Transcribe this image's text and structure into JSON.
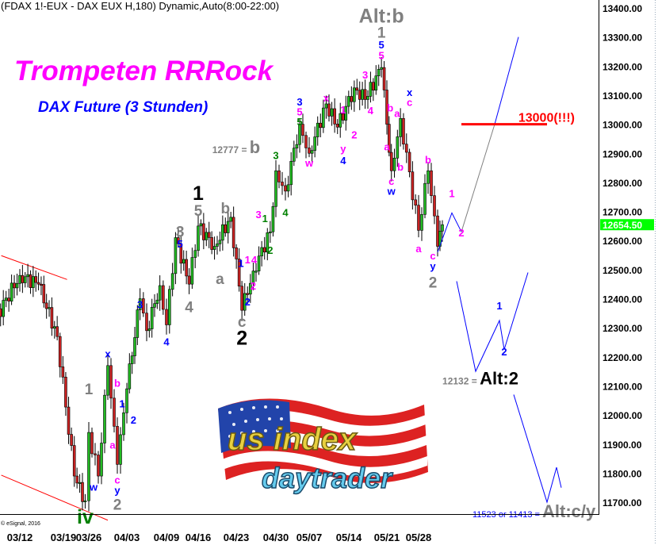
{
  "header": "(FDAX 1!-EUX - DAX EUX H,180) Dynamic,Auto(8:00-22:00)",
  "title": "Trompeten RRRock",
  "subtitle": "DAX Future (3 Stunden)",
  "copyright": "© eSignal, 2016",
  "logo": {
    "line1": "us index",
    "line2": "daytrader"
  },
  "colors": {
    "up": "#22bb22",
    "down": "#cc2222",
    "magenta": "#ff00ff",
    "blue": "#0000ff",
    "gray": "#808080",
    "green": "#008000",
    "black": "#000000",
    "red": "#ff0000",
    "price_box": "#00ff00"
  },
  "chart_data": {
    "type": "candlestick",
    "ylim": [
      11657,
      13427
    ],
    "y_ticks": [
      "13400.00",
      "13300.00",
      "13200.00",
      "13100.00",
      "13000.00",
      "12900.00",
      "12800.00",
      "12700.00",
      "12600.00",
      "12500.00",
      "12400.00",
      "12300.00",
      "12200.00",
      "12100.00",
      "12000.00",
      "11900.00",
      "11800.00",
      "11700.00"
    ],
    "x_ticks": [
      "03/12",
      "03/19",
      "03/26",
      "04/03",
      "04/09",
      "04/16",
      "04/23",
      "04/30",
      "05/07",
      "05/14",
      "05/21",
      "05/28"
    ],
    "last_price": "12654.50",
    "price_path": [
      [
        "03/08",
        12330
      ],
      [
        "03/12",
        12480
      ],
      [
        "03/15",
        12450
      ],
      [
        "03/18",
        12270
      ],
      [
        "03/22",
        11790
      ],
      [
        "03/25",
        11705
      ],
      [
        "03/26",
        11940
      ],
      [
        "03/28",
        11790
      ],
      [
        "03/30",
        12170
      ],
      [
        "04/01",
        11830
      ],
      [
        "04/03",
        12090
      ],
      [
        "04/05",
        12400
      ],
      [
        "04/06",
        12290
      ],
      [
        "04/08",
        12445
      ],
      [
        "04/09",
        12310
      ],
      [
        "04/11",
        12610
      ],
      [
        "04/14",
        12450
      ],
      [
        "04/16",
        12650
      ],
      [
        "04/19",
        12580
      ],
      [
        "04/22",
        12680
      ],
      [
        "04/24",
        12360
      ],
      [
        "04/26",
        12495
      ],
      [
        "04/29",
        12630
      ],
      [
        "04/30",
        12840
      ],
      [
        "05/02",
        12770
      ],
      [
        "05/05",
        13000
      ],
      [
        "05/07",
        12900
      ],
      [
        "05/10",
        13070
      ],
      [
        "05/12",
        12990
      ],
      [
        "05/15",
        13125
      ],
      [
        "05/17",
        13085
      ],
      [
        "05/20",
        13195
      ],
      [
        "05/21",
        13000
      ],
      [
        "05/22",
        12840
      ],
      [
        "05/24",
        13020
      ],
      [
        "05/28",
        12635
      ],
      [
        "05/30",
        12840
      ],
      [
        "06/01",
        12580
      ],
      [
        "06/02",
        12654.5
      ]
    ],
    "forecasts": [
      {
        "color": "blue",
        "points": [
          [
            "06/01",
            12560
          ],
          [
            "06/04",
            12695
          ],
          [
            "06/06",
            12630
          ]
        ]
      },
      {
        "color": "gray",
        "points": [
          [
            "06/06",
            12630
          ],
          [
            "06/13",
            13000
          ]
        ]
      },
      {
        "color": "blue",
        "points": [
          [
            "06/13",
            13000
          ],
          [
            "06/18",
            13300
          ]
        ]
      },
      {
        "color": "blue",
        "points": [
          [
            "06/05",
            12460
          ],
          [
            "06/09",
            12150
          ],
          [
            "06/14",
            12325
          ],
          [
            "06/15",
            12225
          ],
          [
            "06/20",
            12490
          ]
        ]
      },
      {
        "color": "blue",
        "points": [
          [
            "06/17",
            12070
          ],
          [
            "06/24",
            11700
          ],
          [
            "06/26",
            11820
          ],
          [
            "06/27",
            11750
          ]
        ]
      }
    ],
    "target_line": {
      "price": 13000,
      "from": "06/06",
      "to": "06/24",
      "label": "13000(!!!)"
    },
    "channel_lines": [
      {
        "points": [
          [
            "03/09",
            12548
          ],
          [
            "03/20",
            12466
          ]
        ]
      },
      {
        "points": [
          [
            "03/09",
            11793
          ],
          [
            "03/30",
            11638
          ]
        ]
      }
    ],
    "annotations": [
      [
        "03/26",
        12089,
        "1",
        "gray",
        "m"
      ],
      [
        "03/30",
        12211,
        "x",
        "blue",
        "s"
      ],
      [
        "04/01",
        12110,
        "b",
        "magenta",
        "s"
      ],
      [
        "04/02",
        12039,
        "1",
        "blue",
        "s"
      ],
      [
        "04/04",
        11982,
        "2",
        "blue",
        "s"
      ],
      [
        "03/31",
        11897,
        "a",
        "magenta",
        "s"
      ],
      [
        "03/27",
        11752,
        "w",
        "blue",
        "s"
      ],
      [
        "04/01",
        11777,
        "c",
        "magenta",
        "s"
      ],
      [
        "04/01",
        11741,
        "y",
        "blue",
        "s"
      ],
      [
        "04/01",
        11692,
        "2",
        "gray",
        "m"
      ],
      [
        "03/25",
        11650,
        "iv",
        "green",
        "l"
      ],
      [
        "04/05",
        12380,
        "3",
        "blue",
        "s"
      ],
      [
        "04/14",
        12372,
        "4",
        "gray",
        "m"
      ],
      [
        "04/09",
        12252,
        "4",
        "blue",
        "s"
      ],
      [
        "04/12",
        12589,
        "5",
        "blue",
        "s"
      ],
      [
        "04/12",
        12630,
        "3",
        "gray",
        "m"
      ],
      [
        "04/16",
        12703,
        "5",
        "gray",
        "m"
      ],
      [
        "04/16",
        12763,
        "1",
        "black",
        "l"
      ],
      [
        "04/21",
        12711,
        "b",
        "gray",
        "m"
      ],
      [
        "04/20",
        12468,
        "a",
        "gray",
        "m"
      ],
      [
        "04/24",
        12321,
        "c",
        "gray",
        "m"
      ],
      [
        "04/24",
        12266,
        "2",
        "black",
        "l"
      ],
      [
        "04/24",
        12522,
        "1",
        "blue",
        "s"
      ],
      [
        "04/25",
        12534,
        "1",
        "magenta",
        "s"
      ],
      [
        "04/26",
        12534,
        "4",
        "magenta",
        "s"
      ],
      [
        "04/26",
        12444,
        "2",
        "magenta",
        "s"
      ],
      [
        "04/25",
        12389,
        "2",
        "blue",
        "s"
      ],
      [
        "04/27",
        12690,
        "3",
        "magenta",
        "s"
      ],
      [
        "04/28",
        12676,
        "1",
        "green",
        "s"
      ],
      [
        "04/29",
        12567,
        "2",
        "green",
        "s"
      ],
      [
        "05/02",
        12696,
        "4",
        "green",
        "s"
      ],
      [
        "04/30",
        12892,
        "3",
        "green",
        "s"
      ],
      [
        "05/05",
        13077,
        "3",
        "blue",
        "s"
      ],
      [
        "05/05",
        13039,
        "5",
        "magenta",
        "s"
      ],
      [
        "05/05",
        13012,
        "5",
        "green",
        "s"
      ],
      [
        "05/07",
        12867,
        "w",
        "magenta",
        "s"
      ],
      [
        "05/10",
        13091,
        "x",
        "magenta",
        "s"
      ],
      [
        "05/13",
        13050,
        "1",
        "magenta",
        "s"
      ],
      [
        "05/15",
        12963,
        "2",
        "magenta",
        "s"
      ],
      [
        "05/13",
        12916,
        "y",
        "magenta",
        "s"
      ],
      [
        "05/13",
        12875,
        "4",
        "blue",
        "s"
      ],
      [
        "05/17",
        13170,
        "3",
        "magenta",
        "s"
      ],
      [
        "05/18",
        13047,
        "4",
        "magenta",
        "s"
      ],
      [
        "05/20",
        13236,
        "5",
        "magenta",
        "s"
      ],
      [
        "05/20",
        13277,
        "5",
        "blue",
        "s"
      ],
      [
        "05/20",
        13312,
        "1",
        "gray",
        "m"
      ],
      [
        "05/20",
        13373,
        "Alt:b",
        "gray",
        "l"
      ],
      [
        "05/22",
        13056,
        "b",
        "magenta",
        "s"
      ],
      [
        "05/23",
        13037,
        "a",
        "magenta",
        "s"
      ],
      [
        "05/26",
        13105,
        "x",
        "blue",
        "s"
      ],
      [
        "05/26",
        13080,
        "c",
        "magenta",
        "s"
      ],
      [
        "05/21",
        12922,
        "a",
        "magenta",
        "s"
      ],
      [
        "05/24",
        12853,
        "b",
        "magenta",
        "s"
      ],
      [
        "05/22",
        12804,
        "c",
        "magenta",
        "s"
      ],
      [
        "05/22",
        12771,
        "w",
        "blue",
        "s"
      ],
      [
        "05/30",
        12878,
        "b",
        "magenta",
        "s"
      ],
      [
        "05/28",
        12572,
        "a",
        "magenta",
        "s"
      ],
      [
        "05/31",
        12548,
        "c",
        "magenta",
        "s"
      ],
      [
        "05/31",
        12512,
        "y",
        "blue",
        "s"
      ],
      [
        "05/31",
        12457,
        "2",
        "gray",
        "m"
      ],
      [
        "06/04",
        12761,
        "1",
        "magenta",
        "s"
      ],
      [
        "06/06",
        12627,
        "2",
        "magenta",
        "s"
      ],
      [
        "06/14",
        12375,
        "1",
        "blue",
        "s"
      ],
      [
        "06/15",
        12217,
        "2",
        "blue",
        "s"
      ]
    ],
    "notes": [
      {
        "date": "04/23",
        "price": 12922,
        "prefix": "12777 = ",
        "label": "b",
        "prefix_color": "gray",
        "label_color": "gray"
      },
      {
        "date": "06/10",
        "price": 12127,
        "prefix": "12132 = ",
        "label": "Alt:2",
        "prefix_color": "gray",
        "label_color": "black"
      },
      {
        "date": "06/28",
        "price": 11670,
        "prefix": "11523 or 11413 = ",
        "label": "Alt:c/y",
        "prefix_color": "blue",
        "label_color": "gray"
      }
    ]
  }
}
